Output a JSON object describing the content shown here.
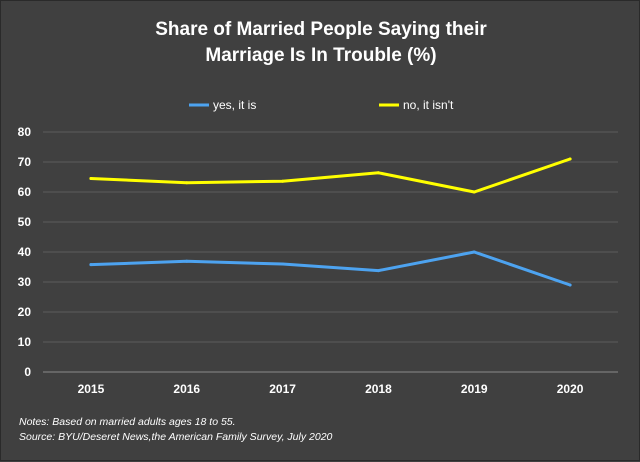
{
  "title_lines": [
    "Share of Married People Saying their",
    "Marriage Is In Trouble (%)"
  ],
  "notes": [
    "Notes: Based on married adults ages 18 to 55.",
    "Source: BYU/Deseret News,the American Family Survey, July 2020"
  ],
  "chart_data": {
    "type": "line",
    "categories": [
      "2015",
      "2016",
      "2017",
      "2018",
      "2019",
      "2020"
    ],
    "series": [
      {
        "name": "yes, it is",
        "color": "#4da3f0",
        "values": [
          35.8,
          36.9,
          36.0,
          33.8,
          40.0,
          29.0
        ]
      },
      {
        "name": "no, it isn't",
        "color": "#ffff00",
        "values": [
          64.5,
          63.1,
          63.6,
          66.4,
          60.0,
          71.0
        ]
      }
    ],
    "yticks": [
      0,
      10,
      20,
      30,
      40,
      50,
      60,
      70,
      80
    ],
    "ylim": [
      0,
      80
    ],
    "grid": true,
    "legend_position": "top",
    "colors": {
      "background": "#404040",
      "grid": "#5c5c5c",
      "text": "#ffffff"
    }
  }
}
